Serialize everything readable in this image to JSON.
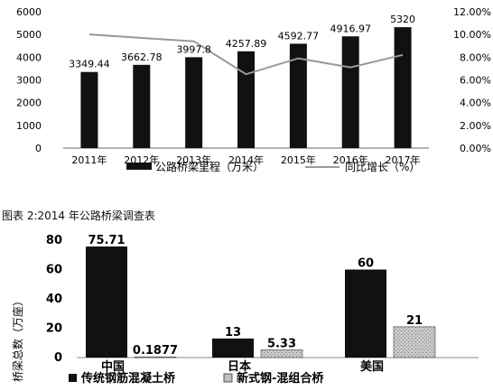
{
  "chart_data": [
    {
      "type": "bar",
      "categories": [
        "2011年",
        "2012年",
        "2013年",
        "2014年",
        "2015年",
        "2016年",
        "2017年"
      ],
      "series": [
        {
          "name": "公路桥梁里程（万米）",
          "type": "bar",
          "axis": "left",
          "values": [
            3349.44,
            3662.78,
            3997.8,
            4257.89,
            4592.77,
            4916.97,
            5320
          ],
          "labels": [
            "3349.44",
            "3662.78",
            "3997.8",
            "4257.89",
            "4592.77",
            "4916.97",
            "5320"
          ]
        },
        {
          "name": "同比增长（%）",
          "type": "line",
          "axis": "right",
          "values": [
            10.0,
            9.7,
            9.4,
            6.5,
            7.9,
            7.1,
            8.2
          ]
        }
      ],
      "ylim": [
        0,
        6000
      ],
      "yticks": [
        "0",
        "1000",
        "2000",
        "3000",
        "4000",
        "5000",
        "6000"
      ],
      "y2lim": [
        0,
        12
      ],
      "y2ticks": [
        "0.00%",
        "2.00%",
        "4.00%",
        "6.00%",
        "8.00%",
        "10.00%",
        "12.00%"
      ],
      "grid": false,
      "legend": "bottom",
      "colors": {
        "bar": "#111111",
        "line": "#999999"
      }
    },
    {
      "type": "bar",
      "title": "图表 2:2014 年公路桥梁调查表",
      "categories": [
        "中国",
        "日本",
        "美国"
      ],
      "ylabel": "桥梁总数（万座）",
      "series": [
        {
          "name": "传统钢筋混凝土桥",
          "values": [
            75.71,
            13,
            60
          ],
          "labels": [
            "75.71",
            "13",
            "60"
          ]
        },
        {
          "name": "新式钢-混组合桥",
          "values": [
            0.1877,
            5.33,
            21
          ],
          "labels": [
            "0.1877",
            "5.33",
            "21"
          ]
        }
      ],
      "ylim": [
        0,
        80
      ],
      "yticks": [
        "0",
        "20",
        "40",
        "60",
        "80"
      ],
      "grid": false,
      "legend": "bottom",
      "colors": {
        "series1": "#111111",
        "series2": "#bfbfbf"
      }
    }
  ]
}
